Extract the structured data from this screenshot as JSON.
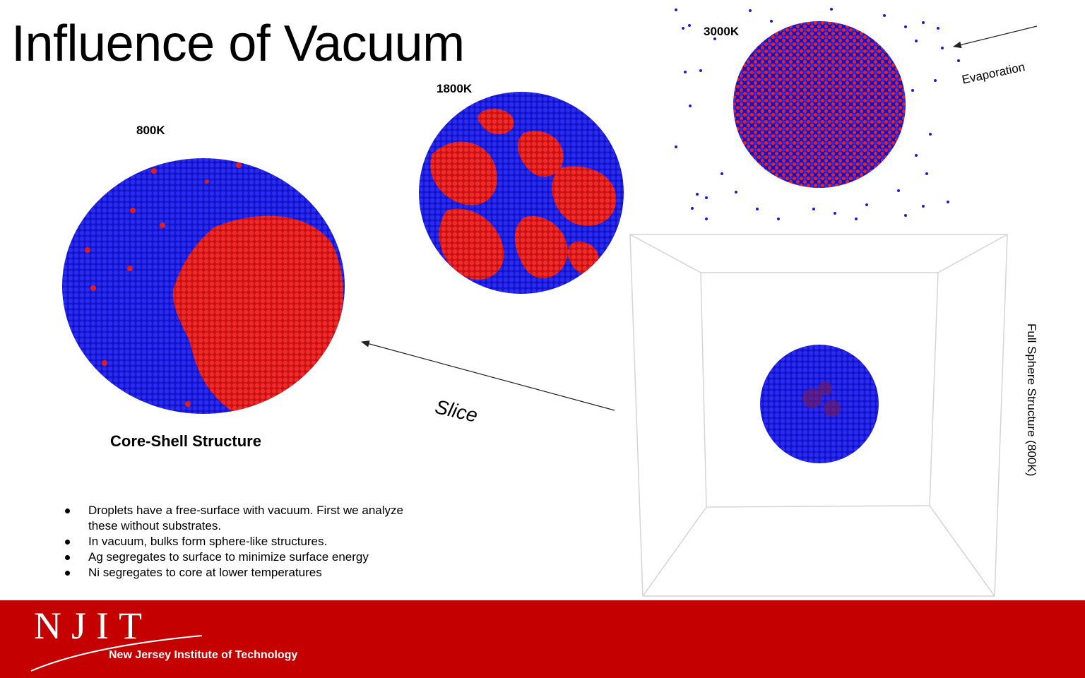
{
  "slide": {
    "title": "Influence of Vacuum",
    "labels": {
      "t800": "800K",
      "t1800": "1800K",
      "t3000": "3000K"
    },
    "caption_core_shell": "Core-Shell Structure",
    "slice": "Slice",
    "evaporation": "Evaporation",
    "full_sphere": "Full Sphere Structure (800K)",
    "bullets": [
      "Droplets have a free-surface with vacuum. First we analyze these without substrates.",
      "In vacuum, bulks form sphere-like structures.",
      "Ag segregates to surface to minimize surface energy",
      "Ni segregates to core at lower temperatures"
    ]
  },
  "colors": {
    "ag_blue": "#1a1adb",
    "ni_red": "#e01e1e",
    "footer_red": "#c40000"
  },
  "footer": {
    "logo": "NJIT",
    "institution": "New Jersey Institute of Technology"
  }
}
